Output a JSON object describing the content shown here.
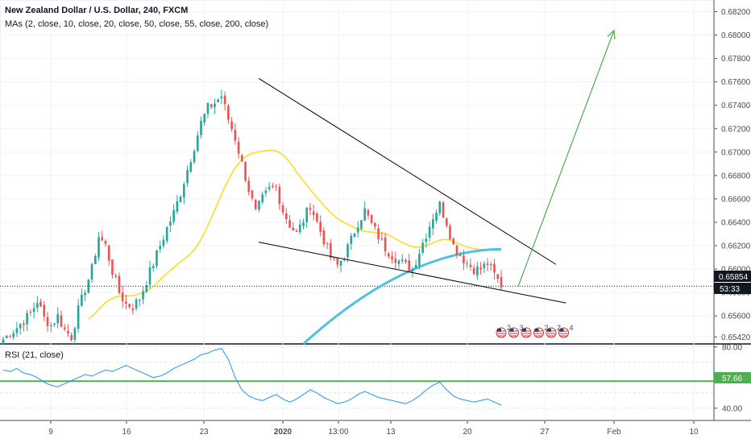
{
  "chart_data": [
    {
      "type": "candlestick",
      "title": "New Zealand Dollar / U.S. Dollar, 240, FXCM",
      "indicator_legend": "MAs (2, close, 10, close, 20, close, 50, close, 55, close, 200, close)",
      "x_ticks": [
        "9",
        "16",
        "23",
        "2020",
        "13:00",
        "13",
        "20",
        "27",
        "Feb",
        "10"
      ],
      "y_ticks": [
        "0.65420",
        "0.65600",
        "0.65800",
        "0.66000",
        "0.66200",
        "0.66400",
        "0.66600",
        "0.66800",
        "0.67000",
        "0.67200",
        "0.67400",
        "0.67600",
        "0.67800",
        "0.68000",
        "0.68200"
      ],
      "ylim": [
        0.6536,
        0.683
      ],
      "last_price": "0.65854",
      "countdown": "53:33",
      "colors": {
        "up": "#26a69a",
        "down": "#ef5350",
        "ma_yellow": "#f7e03a",
        "ma_blue": "#4dc3e0",
        "trendline": "#000000",
        "arrow": "#4caf50",
        "rsi_line": "#2196f3",
        "rsi_level": "#4caf50"
      },
      "candles_anchor_close": [
        0.654,
        0.6545,
        0.655,
        0.6556,
        0.6562,
        0.6573,
        0.6558,
        0.6552,
        0.656,
        0.6548,
        0.6542,
        0.6565,
        0.6583,
        0.66,
        0.6628,
        0.662,
        0.6598,
        0.658,
        0.657,
        0.6568,
        0.6575,
        0.659,
        0.6605,
        0.662,
        0.6635,
        0.6648,
        0.6665,
        0.6685,
        0.6705,
        0.6725,
        0.6738,
        0.6742,
        0.6748,
        0.6728,
        0.6712,
        0.669,
        0.6668,
        0.6648,
        0.666,
        0.6668,
        0.667,
        0.665,
        0.6638,
        0.663,
        0.6642,
        0.6655,
        0.664,
        0.6625,
        0.661,
        0.6603,
        0.6612,
        0.6625,
        0.664,
        0.665,
        0.6638,
        0.6628,
        0.6618,
        0.6612,
        0.6607,
        0.6603,
        0.66,
        0.6615,
        0.663,
        0.6645,
        0.6655,
        0.664,
        0.662,
        0.6612,
        0.6605,
        0.66,
        0.66,
        0.6605,
        0.6595,
        0.6586
      ],
      "trend_upper": [
        {
          "t": "2019-12-28",
          "p": 0.6763
        },
        {
          "t": "2020-01-27",
          "p": 0.6604
        }
      ],
      "trend_lower": [
        {
          "t": "2019-12-28",
          "p": 0.6623
        },
        {
          "t": "2020-01-28",
          "p": 0.6571
        }
      ],
      "projection_arrow": [
        {
          "t": "2020-01-25",
          "p": 0.6585
        },
        {
          "t": "2020-01-31",
          "p": 0.6804
        }
      ],
      "events": [
        {
          "icon": "us-flag",
          "count": "2"
        },
        {
          "icon": "us-flag",
          "count": "3"
        },
        {
          "icon": "us-flag",
          "count": ""
        },
        {
          "icon": "us-flag",
          "count": "2"
        },
        {
          "icon": "us-flag",
          "count": "2"
        },
        {
          "icon": "us-flag",
          "count": "4"
        }
      ]
    },
    {
      "type": "line",
      "title": "RSI (21, close)",
      "y_ticks": [
        "80.00",
        "40.00"
      ],
      "ylim": [
        32,
        82
      ],
      "level": "57.66",
      "rsi": [
        65,
        64,
        66,
        63,
        62,
        60,
        57,
        55,
        54,
        56,
        58,
        60,
        62,
        61,
        63,
        65,
        64,
        66,
        68,
        66,
        64,
        62,
        60,
        61,
        63,
        66,
        68,
        70,
        72,
        75,
        76,
        78,
        79,
        72,
        60,
        52,
        48,
        46,
        45,
        47,
        49,
        46,
        44,
        46,
        49,
        52,
        50,
        47,
        45,
        43,
        44,
        46,
        49,
        51,
        49,
        47,
        46,
        45,
        44,
        43,
        45,
        48,
        52,
        55,
        57,
        52,
        48,
        46,
        45,
        44,
        45,
        46,
        44,
        42
      ]
    }
  ]
}
